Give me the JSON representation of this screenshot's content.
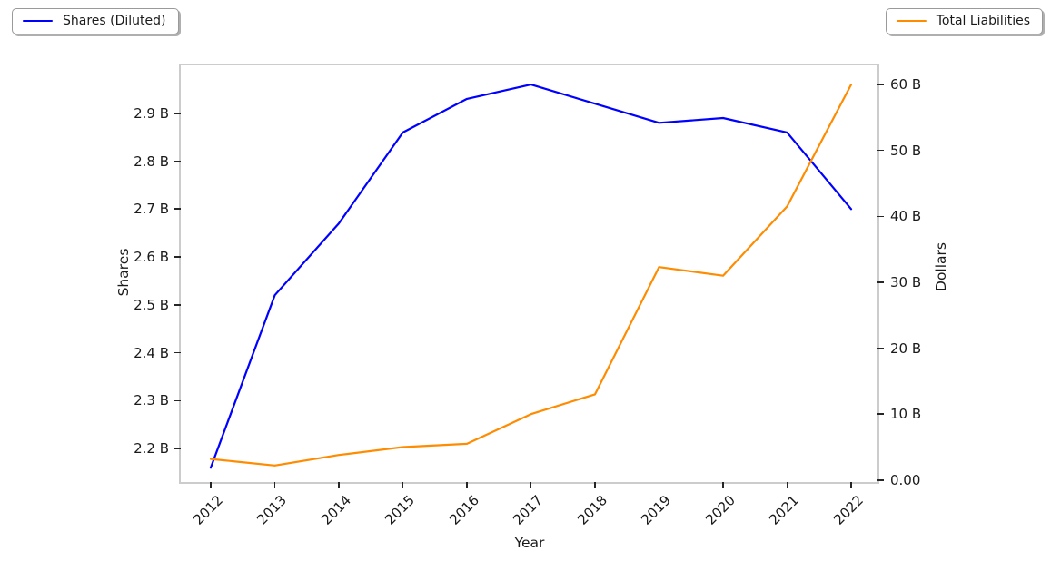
{
  "legend": {
    "left_label": "Shares (Diluted)",
    "right_label": "Total Liabilities"
  },
  "colors": {
    "shares_line": "#0000ff",
    "liabilities_line": "#ff8c00",
    "tick_text": "#1a1a1a",
    "spine": "#cccccc"
  },
  "chart_data": {
    "type": "line",
    "title": "",
    "xlabel": "Year",
    "ylabel_left": "Shares",
    "ylabel_right": "Dollars",
    "x": [
      2012,
      2013,
      2014,
      2015,
      2016,
      2017,
      2018,
      2019,
      2020,
      2021,
      2022
    ],
    "x_tick_labels": [
      "2012",
      "2013",
      "2014",
      "2015",
      "2016",
      "2017",
      "2018",
      "2019",
      "2020",
      "2021",
      "2022"
    ],
    "series": [
      {
        "name": "Shares (Diluted)",
        "axis": "left",
        "color": "#0000ff",
        "unit": "billions of shares",
        "values": [
          2.16,
          2.52,
          2.67,
          2.86,
          2.93,
          2.96,
          2.92,
          2.88,
          2.89,
          2.86,
          2.7
        ]
      },
      {
        "name": "Total Liabilities",
        "axis": "right",
        "color": "#ff8c00",
        "unit": "billions of dollars",
        "values": [
          3.2,
          2.2,
          3.8,
          5.0,
          5.5,
          10.0,
          13.0,
          32.3,
          31.0,
          41.5,
          60.0
        ]
      }
    ],
    "left_ticks": [
      {
        "v": 2.9,
        "label": "2.9 B"
      },
      {
        "v": 2.8,
        "label": "2.8 B"
      },
      {
        "v": 2.7,
        "label": "2.7 B"
      },
      {
        "v": 2.6,
        "label": "2.6 B"
      },
      {
        "v": 2.5,
        "label": "2.5 B"
      },
      {
        "v": 2.4,
        "label": "2.4 B"
      },
      {
        "v": 2.3,
        "label": "2.3 B"
      },
      {
        "v": 2.2,
        "label": "2.2 B"
      }
    ],
    "right_ticks": [
      {
        "v": 60,
        "label": "60 B"
      },
      {
        "v": 50,
        "label": "50 B"
      },
      {
        "v": 40,
        "label": "40 B"
      },
      {
        "v": 30,
        "label": "30 B"
      },
      {
        "v": 20,
        "label": "20 B"
      },
      {
        "v": 10,
        "label": "10 B"
      },
      {
        "v": 0,
        "label": "0.00"
      }
    ],
    "ylim_left": [
      2.13,
      3.0
    ],
    "ylim_right": [
      -0.3,
      62.9
    ],
    "grid": false,
    "legend_positions": [
      "upper left (outside axes)",
      "upper right (outside axes)"
    ]
  }
}
